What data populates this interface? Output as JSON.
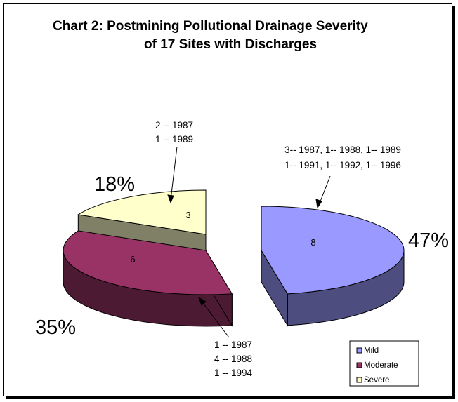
{
  "chart_data": {
    "type": "pie",
    "style": "3d-exploded",
    "title_line1": "Chart 2:  Postmining Pollutional Drainage Severity",
    "title_line2": "of 17 Sites with Discharges",
    "slices": [
      {
        "name": "Mild",
        "value": 8,
        "percent": "47%",
        "color": "#9999ff",
        "side_color": "#4d4d80",
        "annotation": [
          "3-- 1987,  1-- 1988,  1-- 1989",
          "1-- 1991,  1-- 1992,  1-- 1996"
        ]
      },
      {
        "name": "Moderate",
        "value": 6,
        "percent": "35%",
        "color": "#993366",
        "side_color": "#4d1a33",
        "annotation": [
          "1 -- 1987",
          "4 -- 1988",
          "1 -- 1994"
        ]
      },
      {
        "name": "Severe",
        "value": 3,
        "percent": "18%",
        "color": "#ffffcc",
        "side_color": "#808066",
        "annotation": [
          "2 -- 1987",
          "1 -- 1989"
        ]
      }
    ],
    "legend": {
      "placement": "bottom-right",
      "entries": [
        "Mild",
        "Moderate",
        "Severe"
      ]
    }
  }
}
